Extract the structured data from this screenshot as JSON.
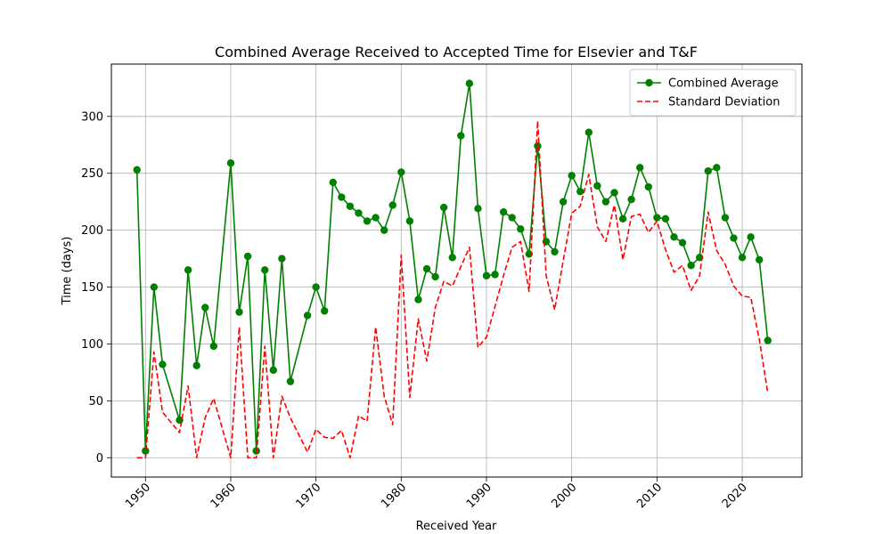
{
  "chart_data": {
    "type": "line",
    "title": "Combined Average Received to Accepted Time for Elsevier and T&F",
    "xlabel": "Received Year",
    "ylabel": "Time (days)",
    "xlim": [
      1946,
      2027
    ],
    "ylim": [
      -17,
      346
    ],
    "xticks": [
      1950,
      1960,
      1970,
      1980,
      1990,
      2000,
      2010,
      2020
    ],
    "yticks": [
      0,
      50,
      100,
      150,
      200,
      250,
      300
    ],
    "grid": true,
    "legend": "top-right",
    "series": [
      {
        "name": "Combined Average",
        "color": "#008000",
        "style": "solid-marker",
        "x": [
          1949,
          1950,
          1951,
          1952,
          1954,
          1955,
          1956,
          1957,
          1958,
          1960,
          1961,
          1962,
          1963,
          1964,
          1965,
          1966,
          1967,
          1969,
          1970,
          1971,
          1972,
          1973,
          1974,
          1975,
          1976,
          1977,
          1978,
          1979,
          1980,
          1981,
          1982,
          1983,
          1984,
          1985,
          1986,
          1987,
          1988,
          1989,
          1990,
          1991,
          1992,
          1993,
          1994,
          1995,
          1996,
          1997,
          1998,
          1999,
          2000,
          2001,
          2002,
          2003,
          2004,
          2005,
          2006,
          2007,
          2008,
          2009,
          2010,
          2011,
          2012,
          2013,
          2014,
          2015,
          2016,
          2017,
          2018,
          2019,
          2020,
          2021,
          2022,
          2023
        ],
        "y": [
          253,
          6,
          150,
          82,
          33,
          165,
          81,
          132,
          98,
          259,
          128,
          177,
          6,
          165,
          77,
          175,
          67,
          125,
          150,
          129,
          242,
          229,
          221,
          215,
          208,
          211,
          200,
          222,
          251,
          208,
          139,
          166,
          159,
          220,
          176,
          283,
          329,
          219,
          160,
          161,
          216,
          211,
          201,
          179,
          274,
          190,
          181,
          225,
          248,
          234,
          286,
          239,
          225,
          233,
          210,
          227,
          255,
          238,
          211,
          210,
          194,
          189,
          169,
          176,
          252,
          255,
          211,
          193,
          176,
          194,
          174,
          103
        ]
      },
      {
        "name": "Standard Deviation",
        "color": "#ff0000",
        "style": "dashed",
        "x": [
          1949,
          1950,
          1951,
          1952,
          1954,
          1955,
          1956,
          1957,
          1958,
          1960,
          1961,
          1962,
          1963,
          1964,
          1965,
          1966,
          1967,
          1969,
          1970,
          1971,
          1972,
          1973,
          1974,
          1975,
          1976,
          1977,
          1978,
          1979,
          1980,
          1981,
          1982,
          1983,
          1984,
          1985,
          1986,
          1987,
          1988,
          1989,
          1990,
          1991,
          1992,
          1993,
          1994,
          1995,
          1996,
          1997,
          1998,
          1999,
          2000,
          2001,
          2002,
          2003,
          2004,
          2005,
          2006,
          2007,
          2008,
          2009,
          2010,
          2011,
          2012,
          2013,
          2014,
          2015,
          2016,
          2017,
          2018,
          2019,
          2020,
          2021,
          2022,
          2023
        ],
        "y": [
          0,
          0,
          93,
          40,
          22,
          63,
          0,
          35,
          52,
          0,
          115,
          0,
          0,
          98,
          0,
          54,
          35,
          5,
          25,
          18,
          17,
          24,
          0,
          37,
          32,
          115,
          54,
          29,
          178,
          53,
          122,
          85,
          132,
          155,
          151,
          168,
          185,
          97,
          106,
          133,
          160,
          185,
          190,
          146,
          296,
          160,
          130,
          173,
          215,
          221,
          249,
          203,
          190,
          222,
          174,
          212,
          214,
          198,
          208,
          183,
          163,
          169,
          147,
          160,
          216,
          182,
          170,
          151,
          142,
          141,
          104,
          57
        ]
      }
    ]
  }
}
